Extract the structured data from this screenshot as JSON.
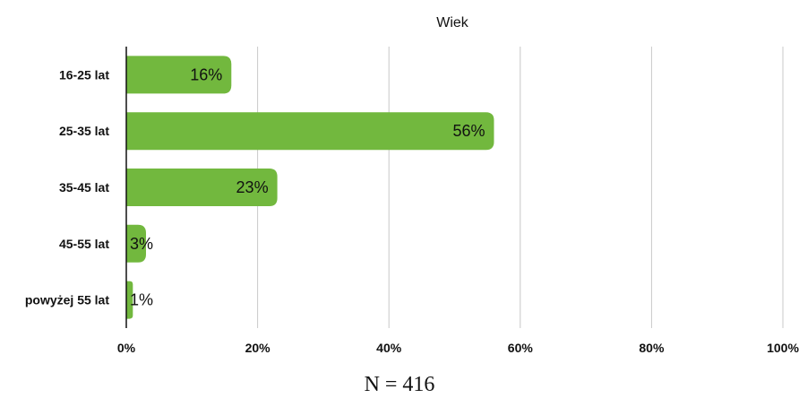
{
  "chart_data": {
    "type": "bar",
    "orientation": "horizontal",
    "title": "Wiek",
    "categories": [
      "16-25 lat",
      "25-35 lat",
      "35-45 lat",
      "45-55 lat",
      "powyżej 55 lat"
    ],
    "values": [
      16,
      56,
      23,
      3,
      1
    ],
    "value_labels": [
      "16%",
      "56%",
      "23%",
      "3%",
      "1%"
    ],
    "xlim": [
      0,
      100
    ],
    "x_ticks": [
      0,
      20,
      40,
      60,
      80,
      100
    ],
    "x_tick_labels": [
      "0%",
      "20%",
      "40%",
      "60%",
      "80%",
      "100%"
    ],
    "grid": "vertical",
    "bar_color": "#72b83e",
    "footnote": "N = 416"
  }
}
